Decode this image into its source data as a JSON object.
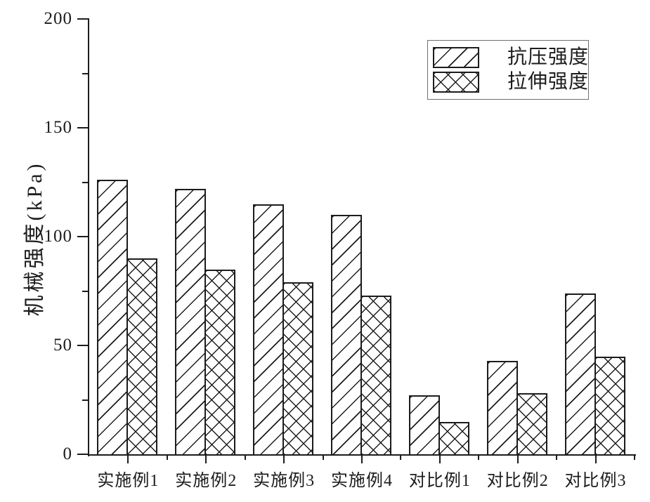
{
  "chart_data": {
    "type": "bar",
    "title": "",
    "categories": [
      "实施例1",
      "实施例2",
      "实施例3",
      "实施例4",
      "对比例1",
      "对比例2",
      "对比例3"
    ],
    "series": [
      {
        "name": "抗压强度",
        "pattern": "diagonal-hatch",
        "values": [
          126,
          122,
          115,
          110,
          27,
          43,
          74
        ]
      },
      {
        "name": "拉伸强度",
        "pattern": "cross-hatch",
        "values": [
          90,
          85,
          79,
          73,
          15,
          28,
          45
        ]
      }
    ],
    "xlabel": "",
    "ylabel": "机械强度(kPa)",
    "ylim": [
      0,
      200
    ],
    "yticks": [
      0,
      50,
      100,
      150,
      200
    ],
    "ytick_labels": [
      "0",
      "50",
      "100",
      "150",
      "200"
    ],
    "minor_tick_interval": 25,
    "grid": false,
    "legend_position": "top-right",
    "bar_fill": "#ffffff",
    "line_color": "#1c1c1c",
    "background_color": "#ffffff"
  }
}
